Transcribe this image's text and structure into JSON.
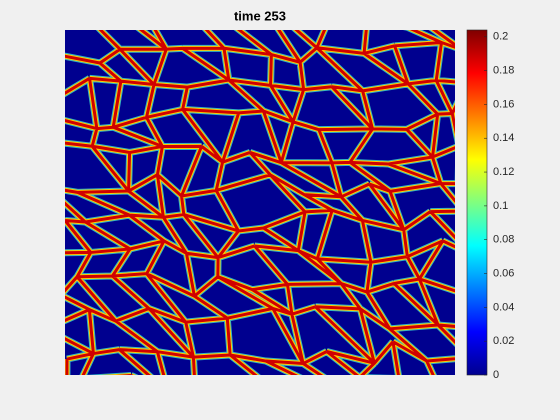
{
  "chart_data": {
    "type": "image",
    "title": "time 253",
    "colorbar": {
      "clim": [
        0,
        0.204
      ],
      "ticks": [
        0,
        0.02,
        0.04,
        0.06,
        0.08,
        0.1,
        0.12,
        0.14,
        0.16,
        0.18,
        0.2
      ]
    }
  }
}
